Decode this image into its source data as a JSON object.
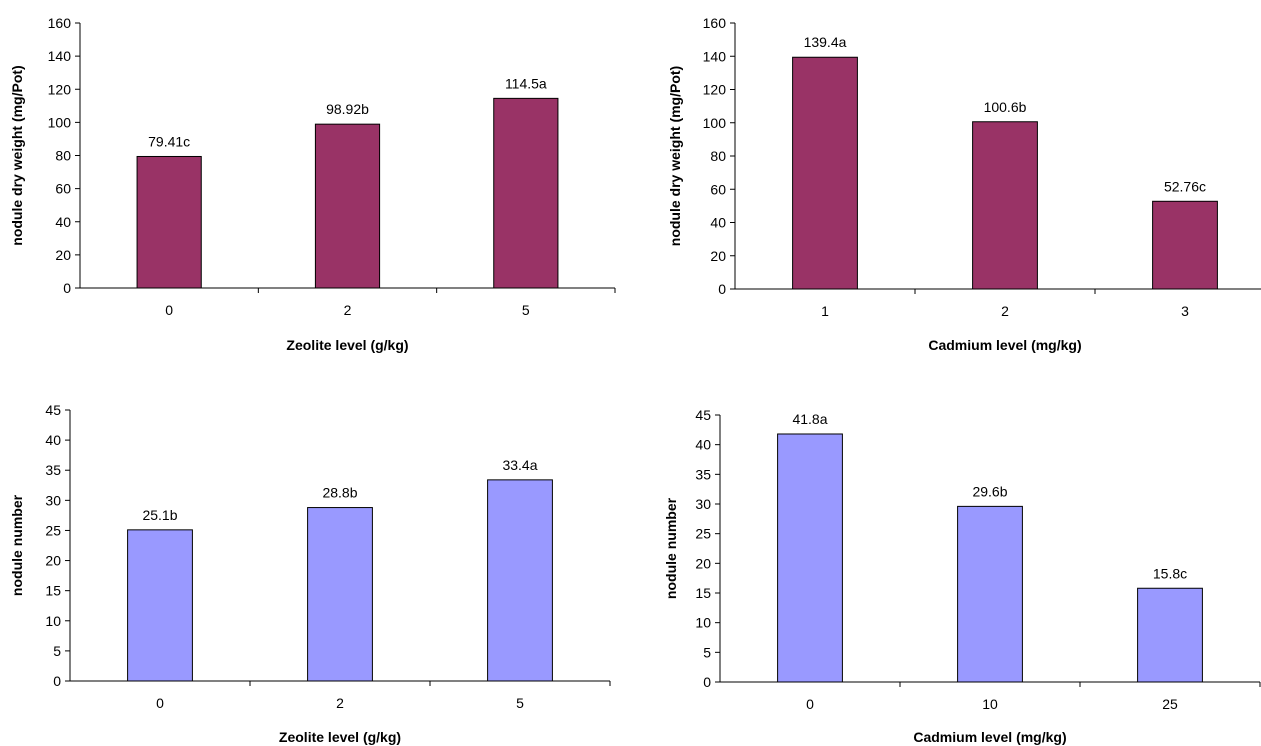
{
  "chart_data": [
    {
      "type": "bar",
      "categories": [
        "0",
        "2",
        "5"
      ],
      "values": [
        79.41,
        98.92,
        114.5
      ],
      "data_labels": [
        "79.41c",
        "98.92b",
        "114.5a"
      ],
      "xlabel": "Zeolite level (g/kg)",
      "ylabel": "nodule dry weight (mg/Pot)",
      "ylim": [
        0,
        160
      ],
      "yticks": [
        0,
        20,
        40,
        60,
        80,
        100,
        120,
        140,
        160
      ],
      "bar_color": "#993366",
      "grid": false
    },
    {
      "type": "bar",
      "categories": [
        "1",
        "2",
        "3"
      ],
      "values": [
        139.4,
        100.6,
        52.76
      ],
      "data_labels": [
        "139.4a",
        "100.6b",
        "52.76c"
      ],
      "xlabel": "Cadmium level (mg/kg)",
      "ylabel": "nodule dry weight (mg/Pot)",
      "ylim": [
        0,
        160
      ],
      "yticks": [
        0,
        20,
        40,
        60,
        80,
        100,
        120,
        140,
        160
      ],
      "bar_color": "#993366",
      "grid": false
    },
    {
      "type": "bar",
      "categories": [
        "0",
        "2",
        "5"
      ],
      "values": [
        25.1,
        28.8,
        33.4
      ],
      "data_labels": [
        "25.1b",
        "28.8b",
        "33.4a"
      ],
      "xlabel": "Zeolite level (g/kg)",
      "ylabel": "nodule number",
      "ylim": [
        0,
        45
      ],
      "yticks": [
        0,
        5,
        10,
        15,
        20,
        25,
        30,
        35,
        40,
        45
      ],
      "bar_color": "#9999FF",
      "grid": false
    },
    {
      "type": "bar",
      "categories": [
        "0",
        "10",
        "25"
      ],
      "values": [
        41.8,
        29.6,
        15.8
      ],
      "data_labels": [
        "41.8a",
        "29.6b",
        "15.8c"
      ],
      "xlabel": "Cadmium level (mg/kg)",
      "ylabel": "nodule number",
      "ylim": [
        0,
        45
      ],
      "yticks": [
        0,
        5,
        10,
        15,
        20,
        25,
        30,
        35,
        40,
        45
      ],
      "bar_color": "#9999FF",
      "grid": false
    }
  ]
}
